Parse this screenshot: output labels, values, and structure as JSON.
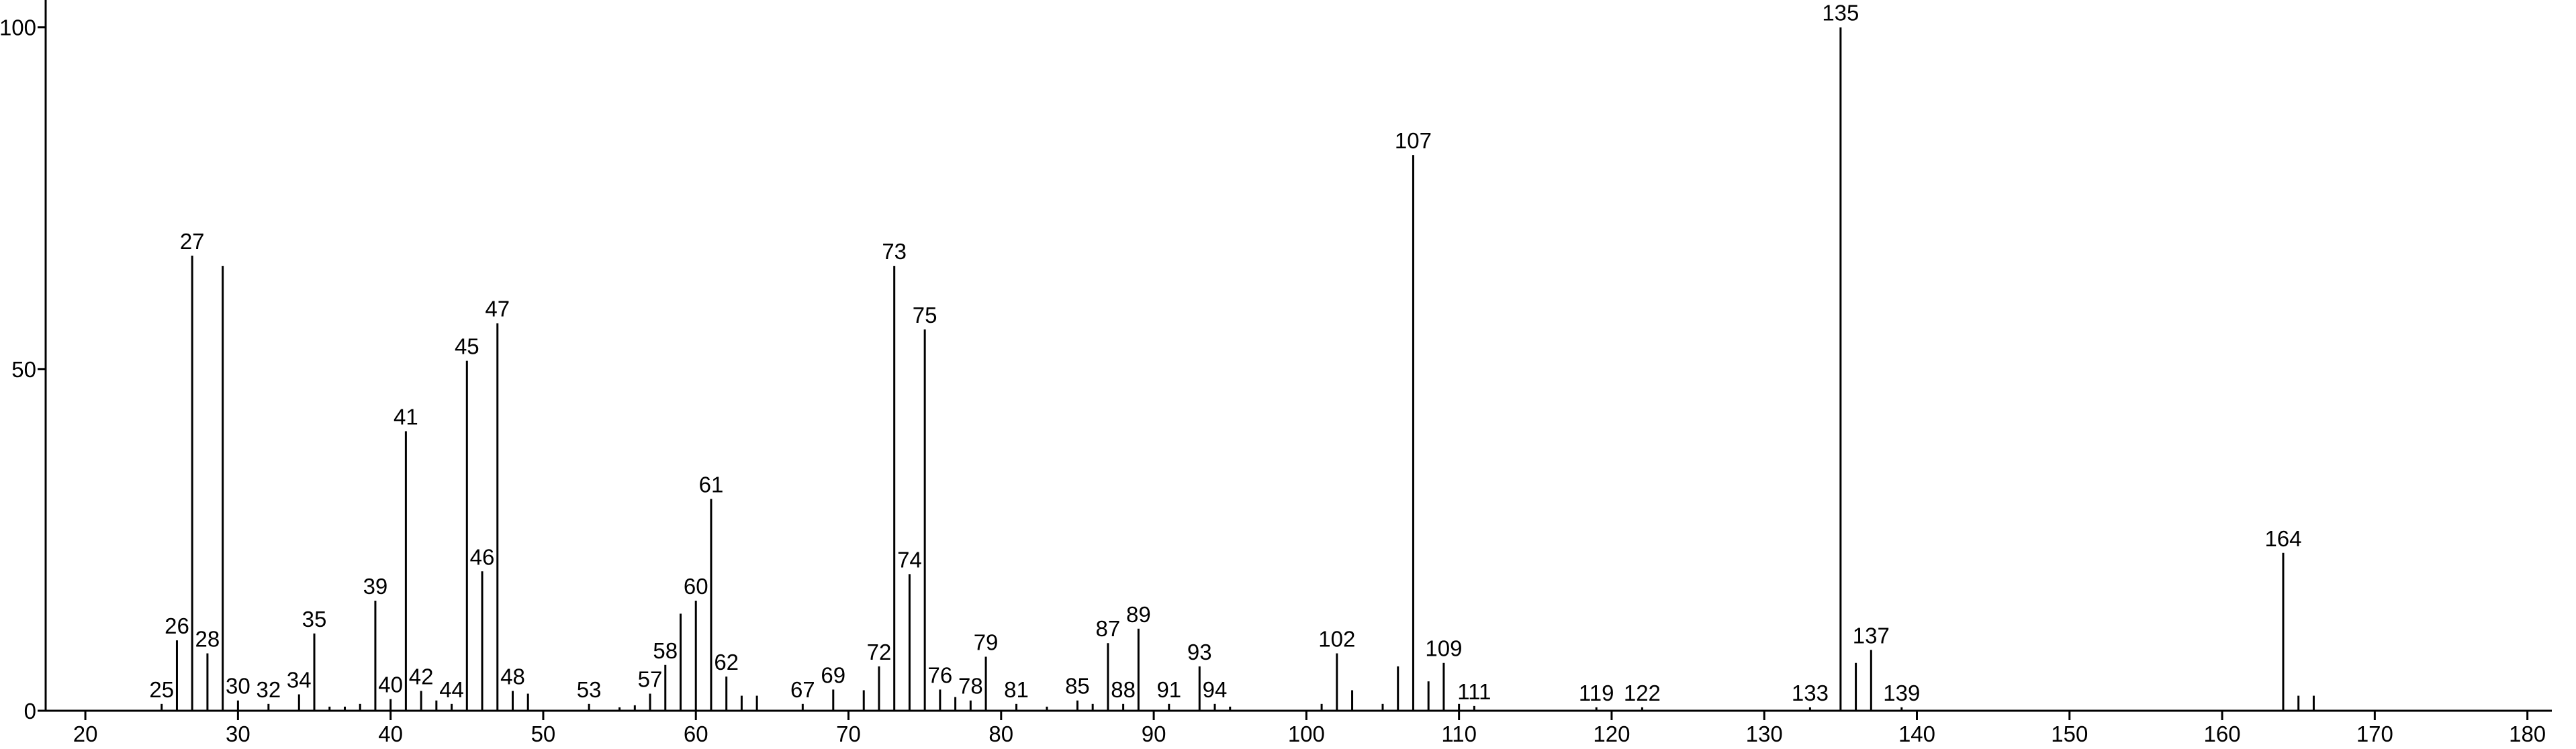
{
  "chart_data": {
    "type": "stick",
    "xlim": [
      17.4,
      181.6
    ],
    "ylim": [
      0,
      104
    ],
    "xticks": [
      20,
      30,
      40,
      50,
      60,
      70,
      80,
      90,
      100,
      110,
      120,
      130,
      140,
      150,
      160,
      170,
      180
    ],
    "yticks": [
      0,
      50,
      100
    ],
    "series": [
      {
        "color": "#000000",
        "show_labels": true,
        "x": [
          25,
          26,
          27,
          28,
          30,
          32,
          34,
          35,
          39,
          40,
          41,
          42,
          44,
          45,
          46,
          47,
          48,
          53,
          57,
          58,
          60,
          61,
          62,
          67,
          69,
          72,
          73,
          74,
          75,
          76,
          78,
          79,
          81,
          85,
          87,
          88,
          89,
          91,
          93,
          94,
          102,
          107,
          109,
          111,
          119,
          122,
          133,
          135,
          137,
          139,
          164
        ],
        "values": [
          1,
          10.3,
          66.6,
          8.4,
          1.5,
          1,
          2.4,
          11.3,
          16.1,
          1.7,
          40.9,
          2.9,
          1,
          51.2,
          20.4,
          56.7,
          2.9,
          1,
          2.5,
          6.7,
          16.1,
          31,
          5,
          1,
          3.1,
          6.5,
          65.1,
          20,
          55.8,
          3.1,
          1.5,
          7.9,
          1,
          1.5,
          9.9,
          1,
          12,
          1,
          6.5,
          1,
          8.4,
          81.3,
          7,
          0.7,
          0.5,
          0.5,
          0.5,
          100,
          8.9,
          0.5,
          23.1
        ]
      },
      {
        "color": "#000000",
        "show_labels": false,
        "x": [
          29,
          36,
          37,
          38,
          43,
          49,
          55,
          56,
          59,
          63,
          64,
          71,
          77,
          83,
          86,
          95,
          101,
          103,
          105,
          106,
          108,
          110,
          136,
          165,
          166
        ],
        "values": [
          65.1,
          0.6,
          0.6,
          1,
          1.5,
          2.5,
          0.5,
          0.8,
          14.2,
          2.2,
          2.2,
          3,
          2,
          0.6,
          1,
          0.6,
          1,
          3,
          1,
          6.5,
          4.3,
          1,
          7,
          2.2,
          2.2
        ]
      }
    ]
  }
}
